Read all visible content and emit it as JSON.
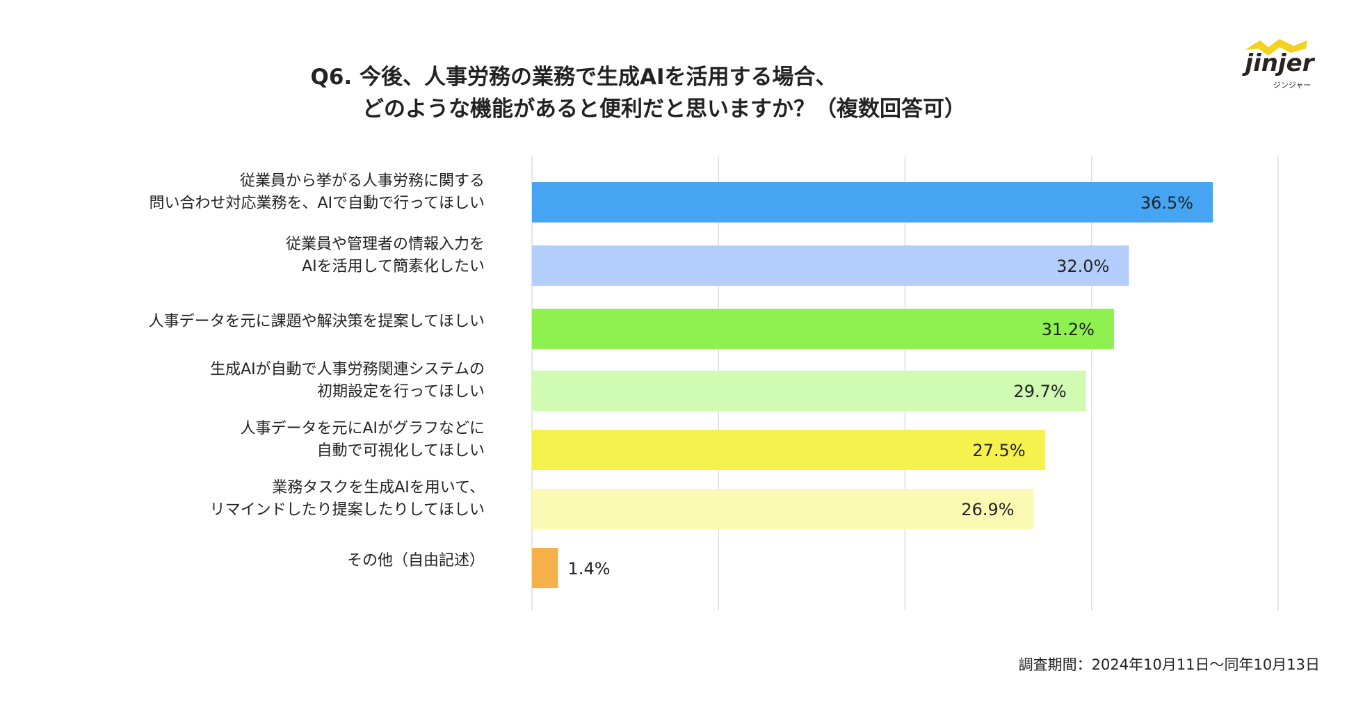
{
  "title_line1": "Q6. 今後、人事労務の業務で生成AIを活用する場合、",
  "title_line2": "どのような機能があると便利だと思いますか？（複数回答可）",
  "logo": {
    "text": "jinjer",
    "subtitle": "ジンジャー",
    "accent": "#f2d21c"
  },
  "footer": "調査期間：2024年10月11日〜同年10月13日",
  "chart_data": {
    "type": "bar",
    "orientation": "horizontal",
    "xlim": [
      0,
      40
    ],
    "grid": true,
    "categories": [
      [
        "従業員から挙がる人事労務に関する",
        "問い合わせ対応業務を、AIで自動で行ってほしい"
      ],
      [
        "従業員や管理者の情報入力を",
        "AIを活用して簡素化したい"
      ],
      [
        "人事データを元に課題や解決策を提案してほしい"
      ],
      [
        "生成AIが自動で人事労務関連システムの",
        "初期設定を行ってほしい"
      ],
      [
        "人事データを元にAIがグラフなどに",
        "自動で可視化してほしい"
      ],
      [
        "業務タスクを生成AIを用いて、",
        "リマインドしたり提案したりしてほしい"
      ],
      [
        "その他（自由記述）"
      ]
    ],
    "values": [
      36.5,
      32.0,
      31.2,
      29.7,
      27.5,
      26.9,
      1.4
    ],
    "value_labels": [
      "36.5%",
      "32.0%",
      "31.2%",
      "29.7%",
      "27.5%",
      "26.9%",
      "1.4%"
    ],
    "colors": [
      "#45a5f3",
      "#b3cdfc",
      "#8ef14f",
      "#d0fbb3",
      "#f5f24d",
      "#fbfab3",
      "#f5b049"
    ]
  }
}
